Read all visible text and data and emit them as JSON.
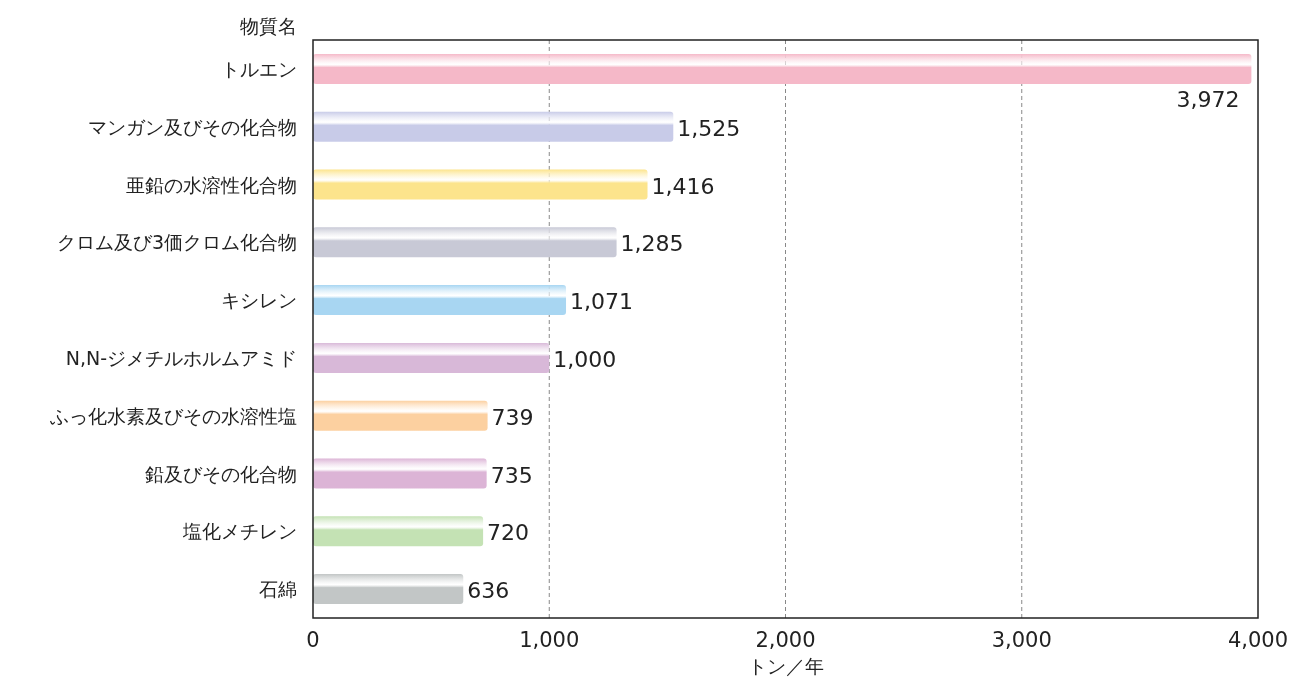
{
  "chart_data": {
    "type": "bar",
    "orientation": "horizontal",
    "ylabel": "物質名",
    "xlabel": "トン／年",
    "categories": [
      "トルエン",
      "マンガン及びその化合物",
      "亜鉛の水溶性化合物",
      "クロム及び3価クロム化合物",
      "キシレン",
      "N,N-ジメチルホルムアミド",
      "ふっ化水素及びその水溶性塩",
      "鉛及びその化合物",
      "塩化メチレン",
      "石綿"
    ],
    "values": [
      3972,
      1525,
      1416,
      1285,
      1071,
      1000,
      739,
      735,
      720,
      636
    ],
    "value_labels": [
      "3,972",
      "1,525",
      "1,416",
      "1,285",
      "1,071",
      "1,000",
      "739",
      "735",
      "720",
      "636"
    ],
    "colors": [
      "#f5b8c8",
      "#c8cbe8",
      "#fce48c",
      "#c8c9d6",
      "#a8d6f2",
      "#d8b8d8",
      "#fcd0a0",
      "#dcb4d6",
      "#c4e2b4",
      "#c2c6c6"
    ],
    "xlim": [
      0,
      4000
    ],
    "xticks": [
      0,
      {
        "value": 1000,
        "label": "1,000"
      },
      {
        "value": 2000,
        "label": "2,000"
      },
      {
        "value": 3000,
        "label": "3,000"
      },
      {
        "value": 4000,
        "label": "4,000"
      }
    ],
    "grid": "x"
  }
}
